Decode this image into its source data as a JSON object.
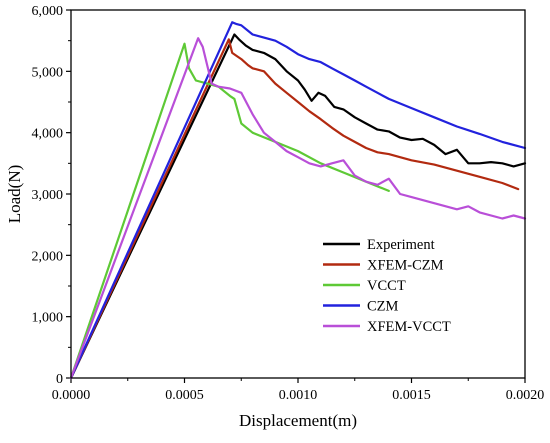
{
  "chart_data": {
    "type": "line",
    "xlabel": "Displacement(m)",
    "ylabel": "Load(N)",
    "xlim": [
      0,
      0.002
    ],
    "ylim": [
      0,
      6000
    ],
    "x_ticks": [
      0,
      0.0005,
      0.001,
      0.0015,
      0.002
    ],
    "x_tick_labels": [
      "0.0000",
      "0.0005",
      "0.0010",
      "0.0015",
      "0.0020"
    ],
    "y_ticks": [
      0,
      1000,
      2000,
      3000,
      4000,
      5000,
      6000
    ],
    "y_tick_labels": [
      "0",
      "1,000",
      "2,000",
      "3,000",
      "4,000",
      "5,000",
      "6,000"
    ],
    "grid": false,
    "legend_position": "bottom-right",
    "series": [
      {
        "name": "Experiment",
        "color": "#000000",
        "x": [
          0,
          0.00072,
          0.00074,
          0.00077,
          0.0008,
          0.00085,
          0.0009,
          0.00095,
          0.001,
          0.00103,
          0.00106,
          0.00109,
          0.00112,
          0.00116,
          0.0012,
          0.00125,
          0.0013,
          0.00135,
          0.0014,
          0.00145,
          0.0015,
          0.00155,
          0.0016,
          0.00165,
          0.0017,
          0.00175,
          0.0018,
          0.00185,
          0.0019,
          0.00195,
          0.002
        ],
        "y": [
          0,
          5600,
          5520,
          5420,
          5350,
          5300,
          5200,
          5000,
          4850,
          4700,
          4520,
          4650,
          4600,
          4420,
          4380,
          4250,
          4150,
          4050,
          4020,
          3920,
          3880,
          3900,
          3800,
          3650,
          3720,
          3500,
          3500,
          3520,
          3500,
          3450,
          3500
        ]
      },
      {
        "name": "XFEM-CZM",
        "color": "#b22a10",
        "x": [
          0,
          0.000695,
          0.00071,
          0.00073,
          0.00075,
          0.00078,
          0.0008,
          0.00085,
          0.0009,
          0.00095,
          0.001,
          0.00105,
          0.0011,
          0.00115,
          0.0012,
          0.00125,
          0.0013,
          0.00135,
          0.0014,
          0.00145,
          0.0015,
          0.0016,
          0.0017,
          0.0018,
          0.0019,
          0.00197
        ],
        "y": [
          0,
          5520,
          5300,
          5250,
          5200,
          5100,
          5050,
          5000,
          4800,
          4650,
          4500,
          4350,
          4220,
          4080,
          3950,
          3850,
          3750,
          3680,
          3650,
          3600,
          3550,
          3480,
          3380,
          3280,
          3180,
          3080
        ]
      },
      {
        "name": "VCCT",
        "color": "#5ec936",
        "x": [
          0,
          0.0005,
          0.00052,
          0.00055,
          0.0006,
          0.00065,
          0.0007,
          0.00072,
          0.00075,
          0.0008,
          0.0009,
          0.001,
          0.0011,
          0.0012,
          0.0013,
          0.0014
        ],
        "y": [
          0,
          5450,
          5050,
          4850,
          4800,
          4750,
          4600,
          4550,
          4150,
          4000,
          3850,
          3700,
          3500,
          3350,
          3200,
          3050
        ]
      },
      {
        "name": "CZM",
        "color": "#2222dd",
        "x": [
          0,
          0.00071,
          0.00073,
          0.00075,
          0.0008,
          0.00085,
          0.0009,
          0.00095,
          0.001,
          0.00105,
          0.0011,
          0.00115,
          0.0012,
          0.00125,
          0.0013,
          0.00135,
          0.0014,
          0.0015,
          0.0016,
          0.0017,
          0.0018,
          0.0019,
          0.002
        ],
        "y": [
          0,
          5800,
          5770,
          5750,
          5600,
          5550,
          5500,
          5400,
          5280,
          5200,
          5150,
          5050,
          4950,
          4850,
          4750,
          4650,
          4550,
          4400,
          4250,
          4100,
          3980,
          3850,
          3750
        ]
      },
      {
        "name": "XFEM-VCCT",
        "color": "#b94fd8",
        "x": [
          0,
          0.00056,
          0.00058,
          0.0006,
          0.00062,
          0.00065,
          0.0007,
          0.00075,
          0.0008,
          0.00085,
          0.0009,
          0.00095,
          0.001,
          0.00105,
          0.0011,
          0.00115,
          0.0012,
          0.00125,
          0.0013,
          0.00135,
          0.0014,
          0.00145,
          0.0015,
          0.0016,
          0.0017,
          0.00175,
          0.0018,
          0.0019,
          0.00195,
          0.002
        ],
        "y": [
          0,
          5540,
          5400,
          5100,
          4800,
          4750,
          4720,
          4650,
          4300,
          4000,
          3850,
          3700,
          3600,
          3500,
          3450,
          3500,
          3550,
          3300,
          3200,
          3150,
          3250,
          3000,
          2950,
          2850,
          2750,
          2800,
          2700,
          2600,
          2650,
          2600
        ]
      }
    ]
  }
}
